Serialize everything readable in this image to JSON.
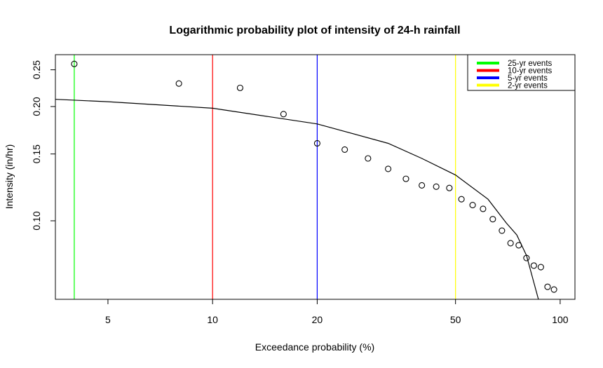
{
  "chart_data": {
    "type": "scatter",
    "title": "Logarithmic probability plot of intensity of 24-h rainfall",
    "x_label": "Exceedance probability (%)",
    "y_label": "Intensity (in/hr)",
    "log_x": true,
    "log_y": true,
    "xlim": [
      3.53,
      110.3
    ],
    "ylim": [
      0.0621,
      0.274
    ],
    "xticks": [
      5,
      10,
      20,
      50,
      100
    ],
    "yticks": [
      {
        "value": 0.1,
        "label": "0.10"
      },
      {
        "value": 0.15,
        "label": "0.15"
      },
      {
        "value": 0.2,
        "label": "0.20"
      },
      {
        "value": 0.25,
        "label": "0.25"
      }
    ],
    "points": {
      "color": "#000000",
      "x": [
        4,
        8,
        12,
        16,
        20,
        24,
        28,
        32,
        36,
        40,
        44,
        48,
        52,
        56,
        60,
        64,
        68,
        72,
        76,
        80,
        84,
        88,
        92,
        96
      ],
      "values": [
        0.259,
        0.23,
        0.224,
        0.191,
        0.16,
        0.154,
        0.146,
        0.137,
        0.129,
        0.124,
        0.123,
        0.122,
        0.114,
        0.11,
        0.1075,
        0.101,
        0.0942,
        0.0873,
        0.0862,
        0.0798,
        0.0762,
        0.0755,
        0.067,
        0.0659
      ]
    },
    "curve": {
      "color": "#000000",
      "x": [
        3.53,
        5,
        10,
        20,
        32,
        40,
        50,
        62,
        70,
        75,
        80,
        86.6
      ],
      "values": [
        0.209,
        0.206,
        0.198,
        0.18,
        0.16,
        0.146,
        0.132,
        0.114,
        0.0987,
        0.0918,
        0.081,
        0.0621
      ]
    },
    "vlines": [
      {
        "name": "25-yr events",
        "color": "#00ff00",
        "x": 4
      },
      {
        "name": "10-yr events",
        "color": "#ff0000",
        "x": 10
      },
      {
        "name": "5-yr events",
        "color": "#0000ff",
        "x": 20
      },
      {
        "name": "2-yr events",
        "color": "#ffff00",
        "x": 50
      }
    ],
    "legend_position": "topright"
  }
}
